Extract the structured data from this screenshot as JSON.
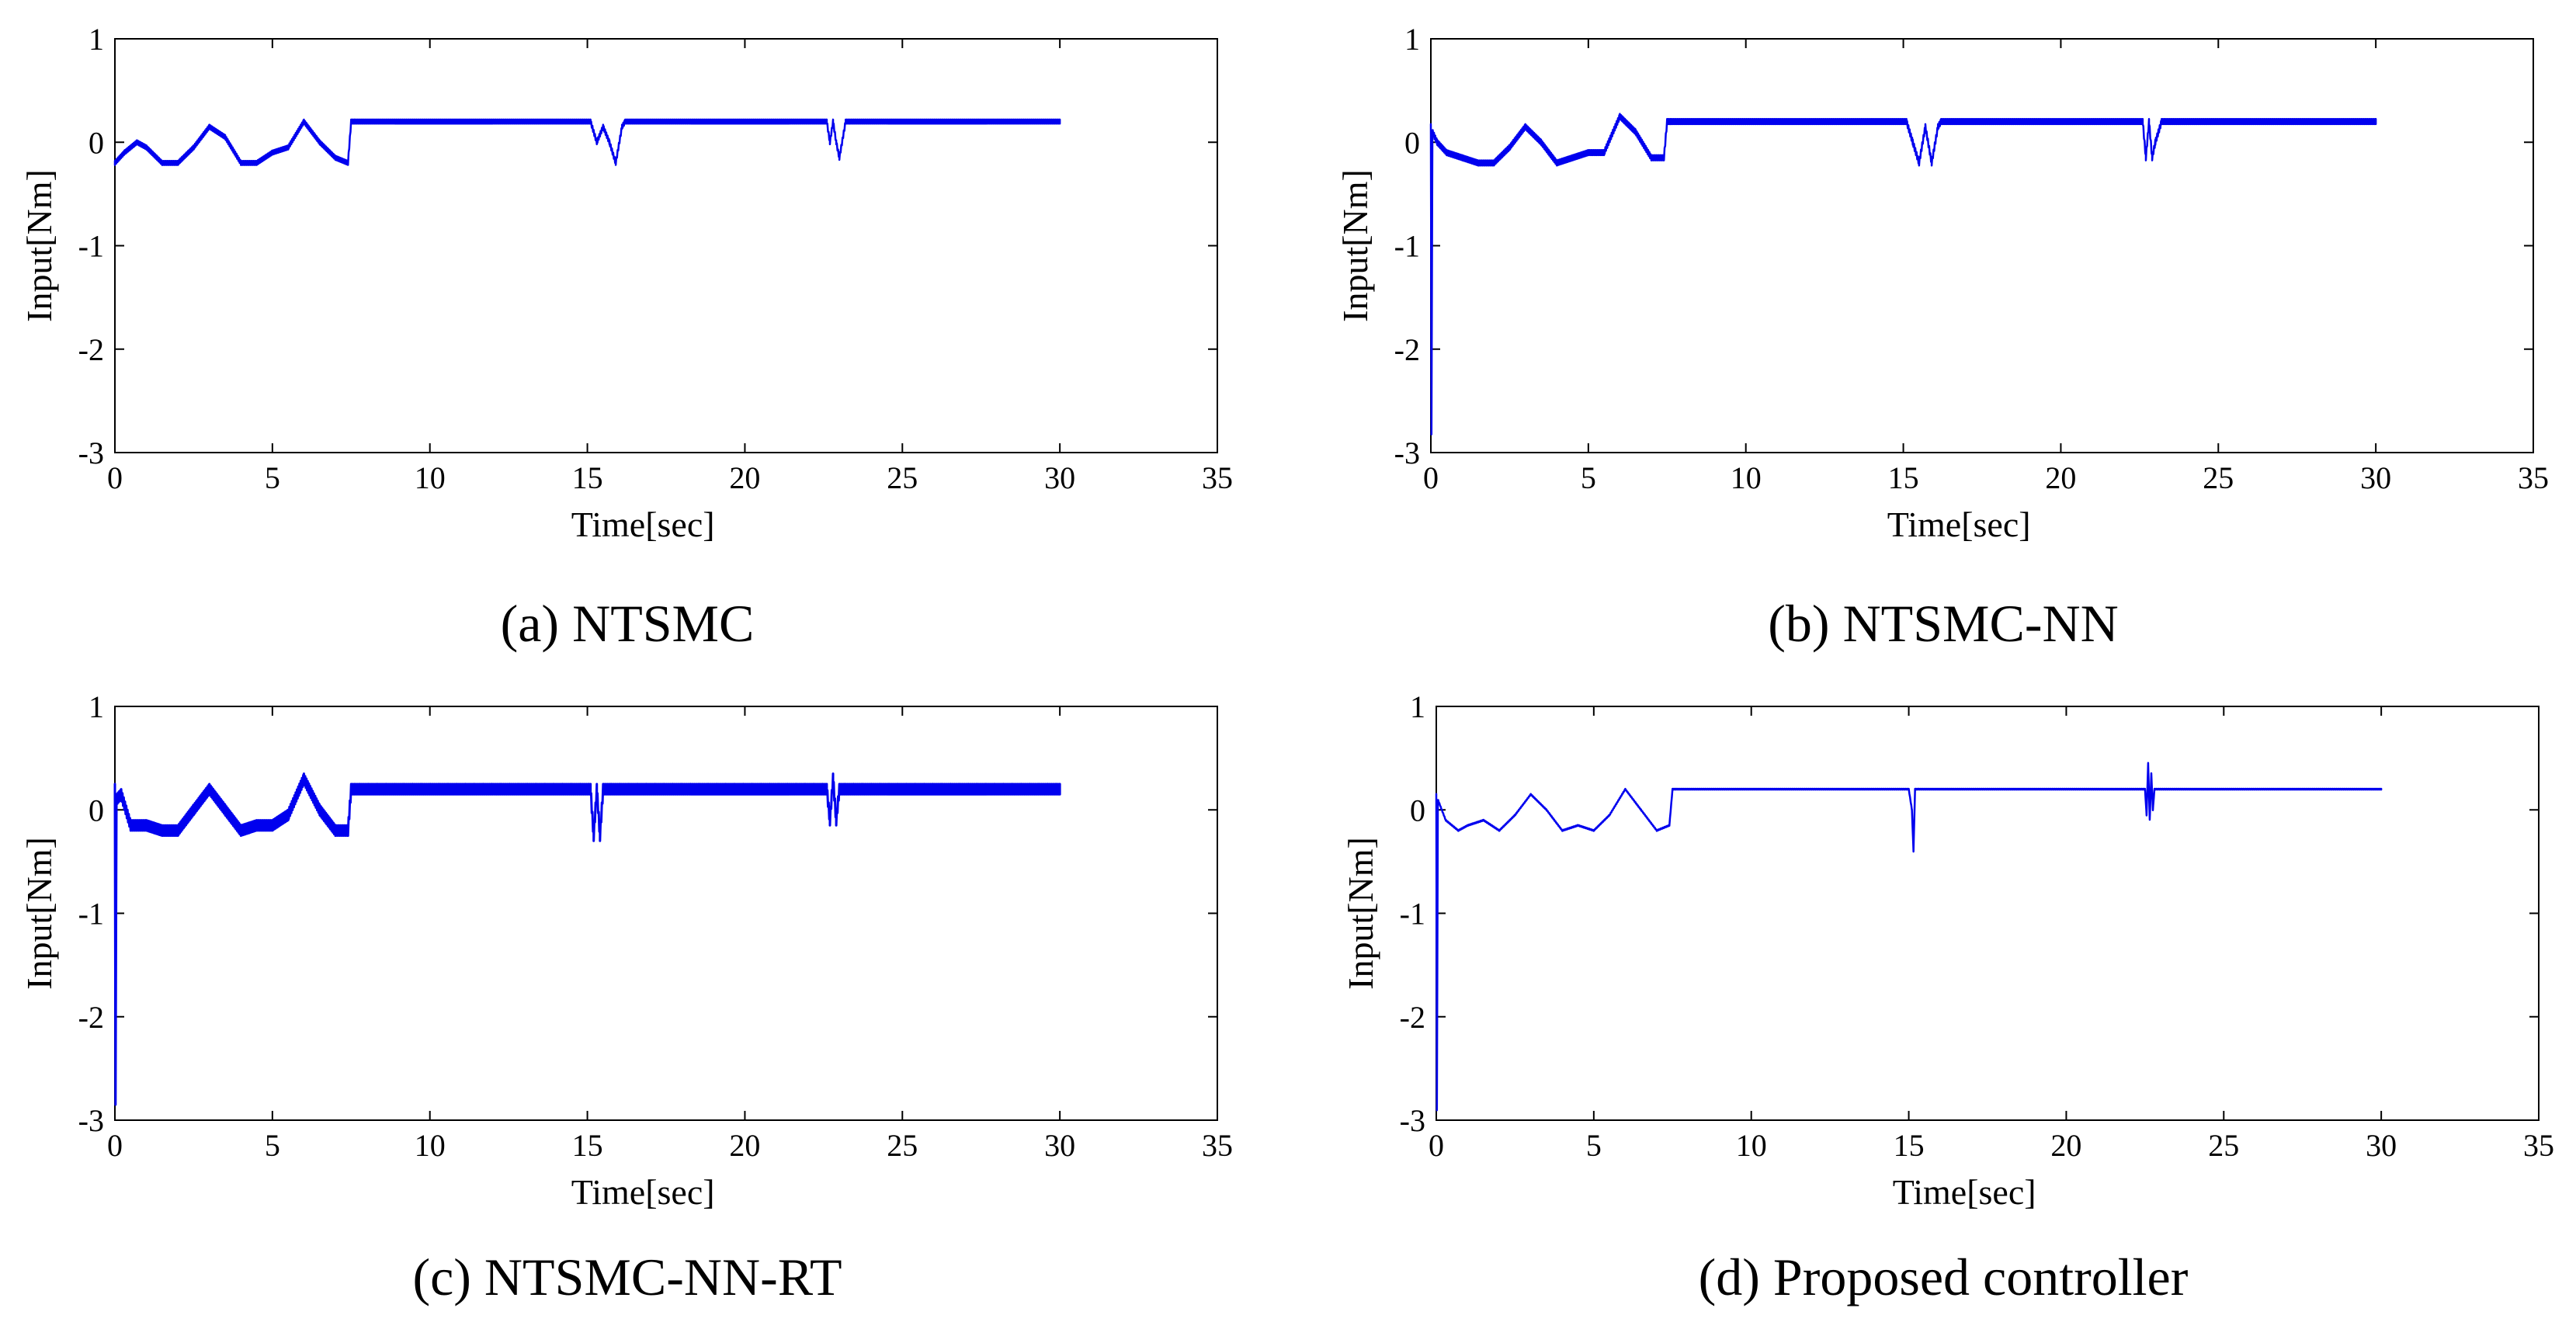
{
  "chart_data": [
    {
      "type": "line",
      "caption": "(a) NTSMC",
      "xlabel": "Time[sec]",
      "ylabel": "Input[Nm]",
      "xlim": [
        0,
        35
      ],
      "ylim": [
        -3,
        1
      ],
      "xticks": [
        "0",
        "5",
        "10",
        "15",
        "20",
        "25",
        "30",
        "35"
      ],
      "yticks": [
        "1",
        "0",
        "-1",
        "-2",
        "-3"
      ],
      "color": "#0000ee",
      "chatter": 0.02,
      "series": [
        {
          "name": "NTSMC",
          "x": [
            0,
            0.3,
            0.7,
            1.0,
            1.5,
            2.0,
            2.5,
            3.0,
            3.5,
            4.0,
            4.5,
            5.0,
            5.5,
            6.0,
            6.5,
            7.0,
            7.4,
            7.5,
            7.6,
            15.1,
            15.3,
            15.5,
            15.7,
            15.9,
            16.1,
            16.2,
            22.6,
            22.7,
            22.8,
            22.9,
            23.0,
            23.2,
            23.3,
            30
          ],
          "y": [
            -0.2,
            -0.1,
            0.0,
            -0.05,
            -0.2,
            -0.2,
            -0.05,
            0.15,
            0.05,
            -0.2,
            -0.2,
            -0.1,
            -0.05,
            0.2,
            0.0,
            -0.15,
            -0.2,
            0.2,
            0.2,
            0.2,
            0.0,
            0.15,
            0.0,
            -0.2,
            0.15,
            0.2,
            0.2,
            0.0,
            0.2,
            0.0,
            -0.15,
            0.2,
            0.2,
            0.2
          ]
        }
      ]
    },
    {
      "type": "line",
      "caption": "(b) NTSMC-NN",
      "xlabel": "Time[sec]",
      "ylabel": "Input[Nm]",
      "xlim": [
        0,
        35
      ],
      "ylim": [
        -3,
        1
      ],
      "xticks": [
        "0",
        "5",
        "10",
        "15",
        "20",
        "25",
        "30",
        "35"
      ],
      "yticks": [
        "1",
        "0",
        "-1",
        "-2",
        "-3"
      ],
      "color": "#0000ee",
      "chatter": 0.025,
      "series": [
        {
          "name": "NTSMC-NN",
          "x": [
            0,
            0.02,
            0.05,
            0.2,
            0.5,
            1.0,
            1.5,
            2.0,
            2.5,
            3.0,
            3.5,
            4.0,
            4.5,
            5.0,
            5.5,
            6.0,
            6.5,
            7.0,
            7.4,
            7.5,
            7.6,
            15.1,
            15.3,
            15.5,
            15.7,
            15.9,
            16.1,
            16.2,
            22.6,
            22.7,
            22.8,
            22.9,
            23.0,
            23.2,
            23.3,
            30
          ],
          "y": [
            0.15,
            -2.8,
            0.1,
            0.0,
            -0.1,
            -0.15,
            -0.2,
            -0.2,
            -0.05,
            0.15,
            0.0,
            -0.2,
            -0.15,
            -0.1,
            -0.1,
            0.25,
            0.1,
            -0.15,
            -0.15,
            0.2,
            0.2,
            0.2,
            0.0,
            -0.2,
            0.15,
            -0.2,
            0.15,
            0.2,
            0.2,
            -0.15,
            0.2,
            -0.15,
            0.0,
            0.2,
            0.2,
            0.2
          ]
        }
      ]
    },
    {
      "type": "line",
      "caption": "(c) NTSMC-NN-RT",
      "xlabel": "Time[sec]",
      "ylabel": "Input[Nm]",
      "xlim": [
        0,
        35
      ],
      "ylim": [
        -3,
        1
      ],
      "xticks": [
        "0",
        "5",
        "10",
        "15",
        "20",
        "25",
        "30",
        "35"
      ],
      "yticks": [
        "1",
        "0",
        "-1",
        "-2",
        "-3"
      ],
      "color": "#0000ee",
      "chatter": 0.05,
      "series": [
        {
          "name": "NTSMC-NN-RT",
          "x": [
            0,
            0.02,
            0.05,
            0.2,
            0.5,
            1.0,
            1.5,
            2.0,
            2.5,
            3.0,
            3.5,
            4.0,
            4.5,
            5.0,
            5.5,
            6.0,
            6.5,
            7.0,
            7.4,
            7.5,
            7.6,
            15.1,
            15.2,
            15.3,
            15.4,
            15.5,
            22.6,
            22.7,
            22.8,
            22.9,
            23.0,
            30
          ],
          "y": [
            0.2,
            -2.8,
            0.1,
            0.15,
            -0.15,
            -0.15,
            -0.2,
            -0.2,
            0.0,
            0.2,
            0.0,
            -0.2,
            -0.15,
            -0.15,
            -0.05,
            0.3,
            0.0,
            -0.2,
            -0.2,
            0.2,
            0.2,
            0.2,
            -0.25,
            0.2,
            -0.25,
            0.2,
            0.2,
            -0.1,
            0.3,
            -0.1,
            0.2,
            0.2
          ]
        }
      ]
    },
    {
      "type": "line",
      "caption": "(d) Proposed controller",
      "xlabel": "Time[sec]",
      "ylabel": "Input[Nm]",
      "xlim": [
        0,
        35
      ],
      "ylim": [
        -3,
        1
      ],
      "xticks": [
        "0",
        "5",
        "10",
        "15",
        "20",
        "25",
        "30",
        "35"
      ],
      "yticks": [
        "1",
        "0",
        "-1",
        "-2",
        "-3"
      ],
      "color": "#0000ee",
      "chatter": 0.004,
      "series": [
        {
          "name": "Proposed controller",
          "x": [
            0,
            0.02,
            0.05,
            0.3,
            0.7,
            1.0,
            1.5,
            2.0,
            2.5,
            3.0,
            3.5,
            4.0,
            4.5,
            5.0,
            5.5,
            6.0,
            6.5,
            7.0,
            7.4,
            7.5,
            7.6,
            15.0,
            15.1,
            15.15,
            15.2,
            15.3,
            22.5,
            22.55,
            22.6,
            22.65,
            22.7,
            22.75,
            22.8,
            30
          ],
          "y": [
            0.15,
            -2.9,
            0.1,
            -0.1,
            -0.2,
            -0.15,
            -0.1,
            -0.2,
            -0.05,
            0.15,
            0.0,
            -0.2,
            -0.15,
            -0.2,
            -0.05,
            0.2,
            0.0,
            -0.2,
            -0.15,
            0.2,
            0.2,
            0.2,
            0.0,
            -0.4,
            0.2,
            0.2,
            0.2,
            -0.05,
            0.45,
            -0.1,
            0.35,
            0.0,
            0.2,
            0.2
          ]
        }
      ]
    }
  ]
}
